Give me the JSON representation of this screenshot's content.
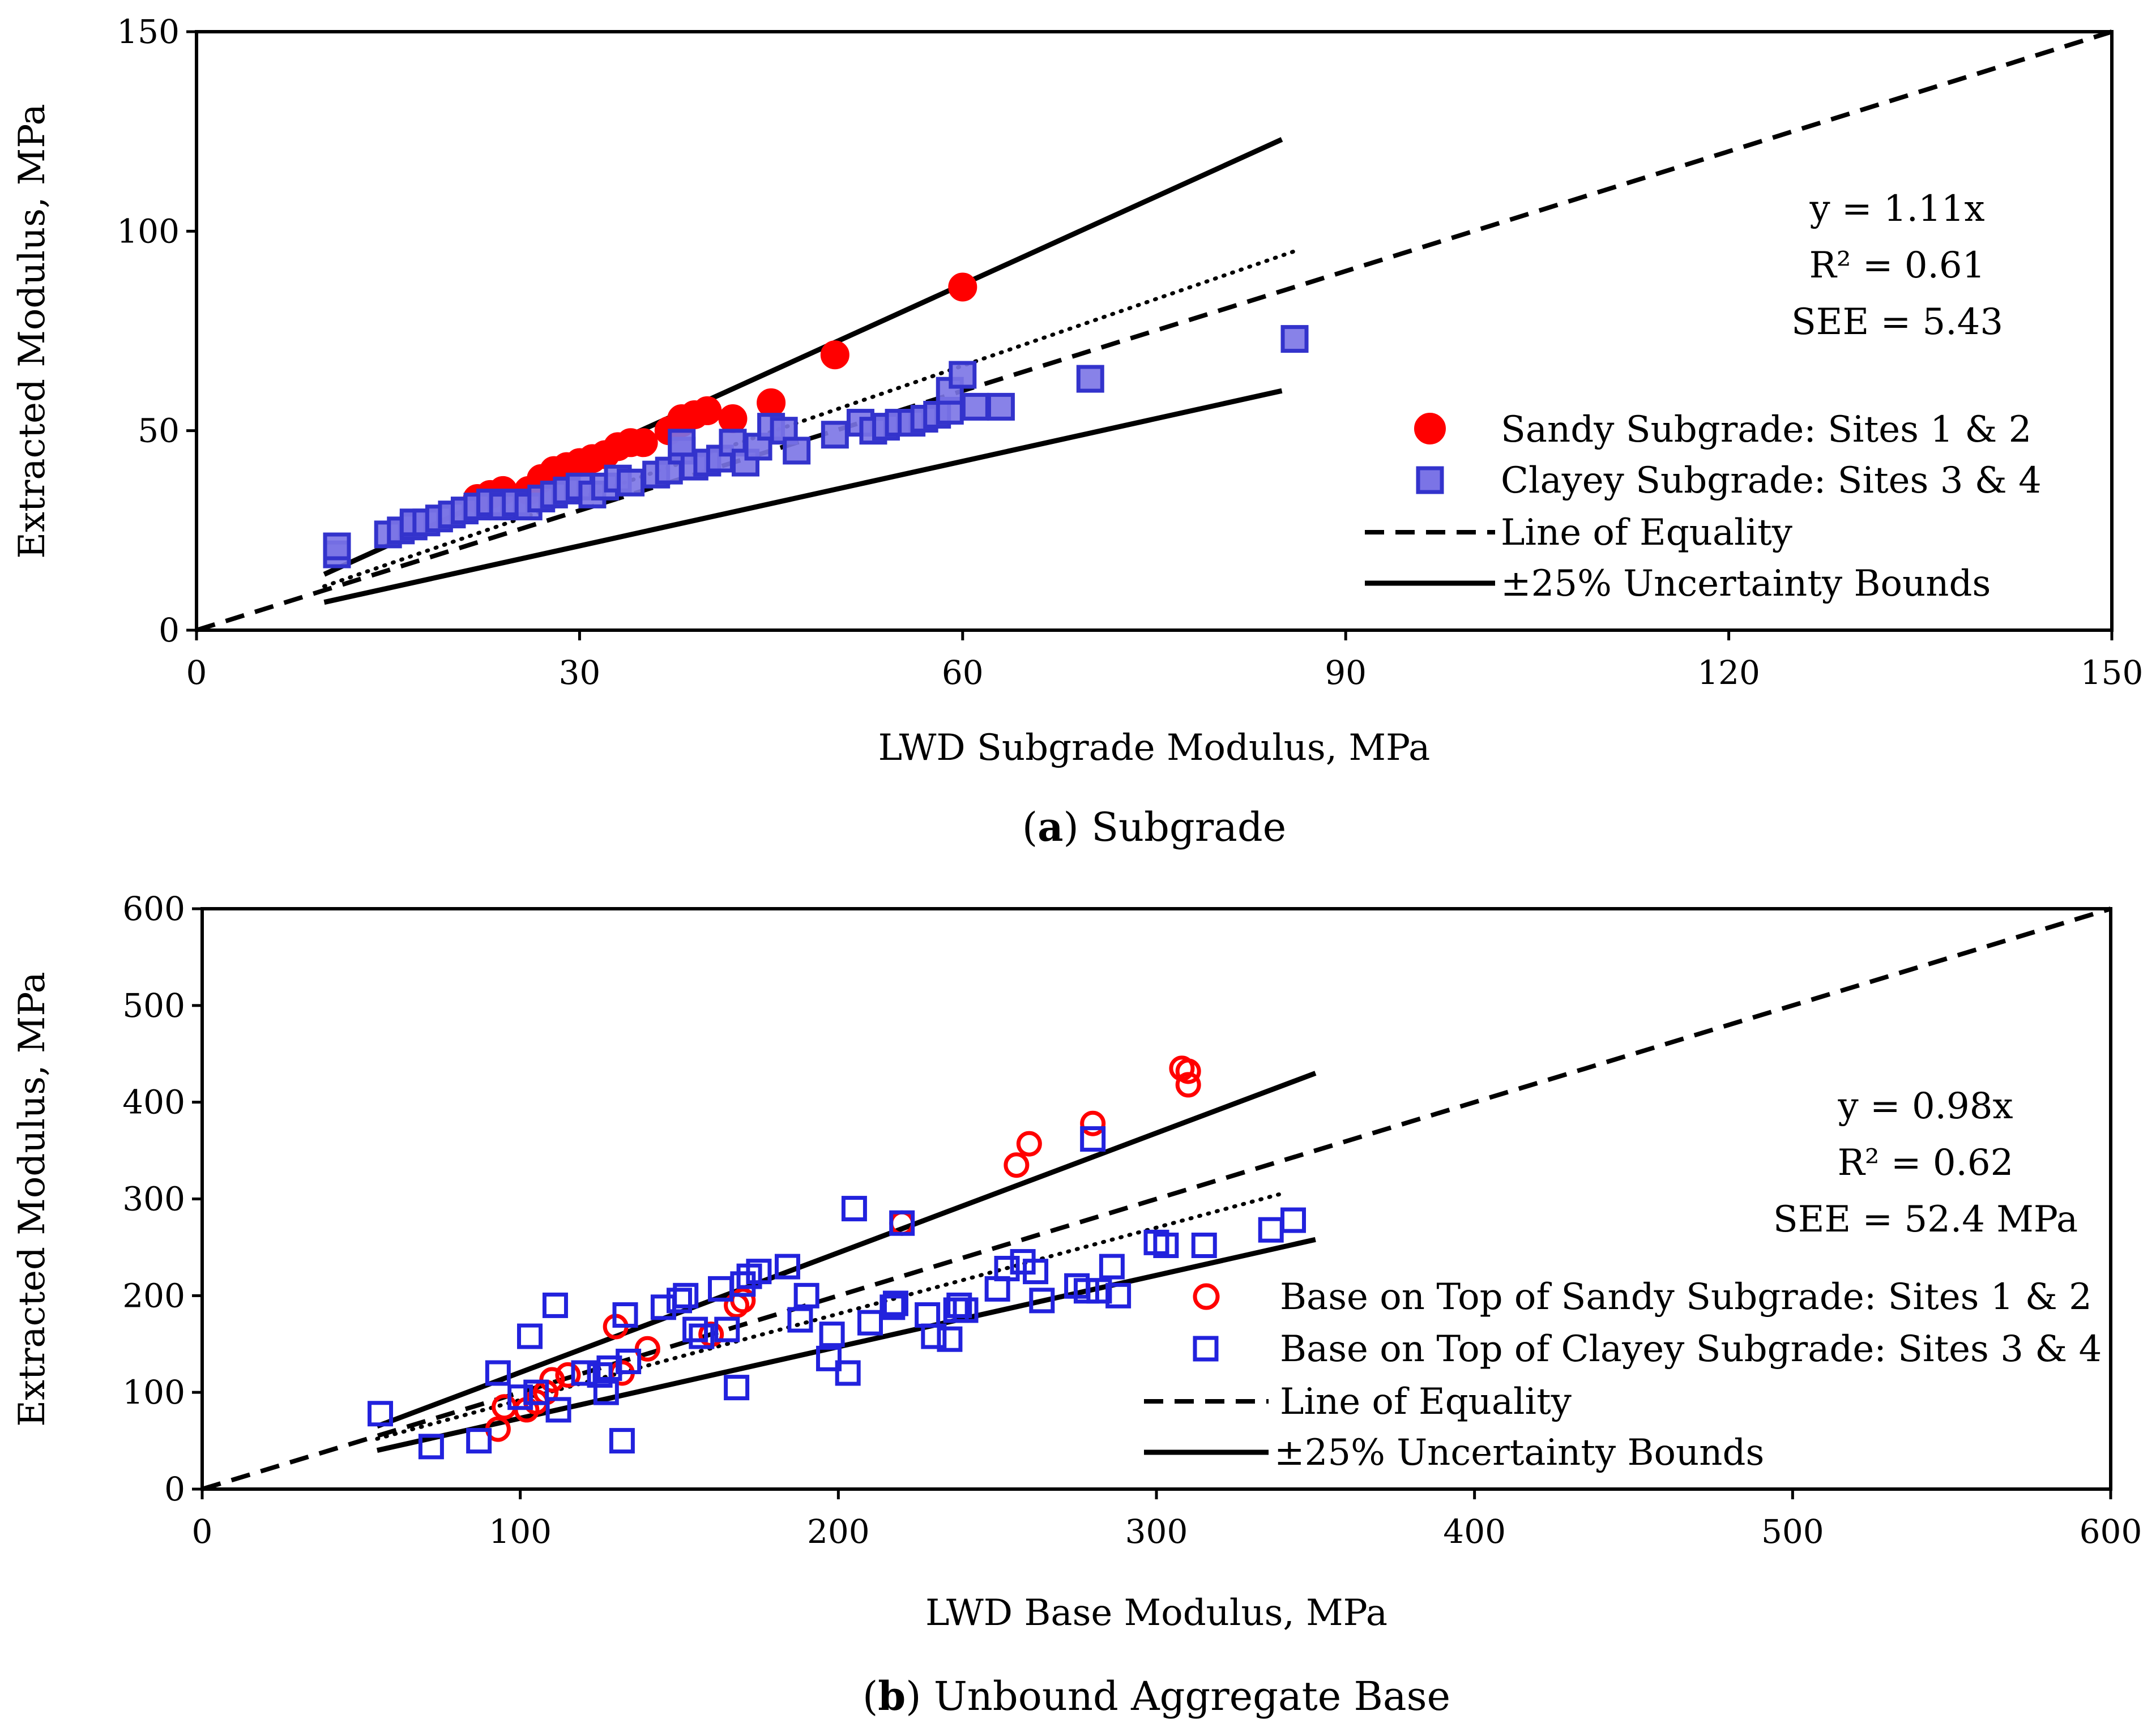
{
  "chart_data": [
    {
      "id": "a",
      "type": "scatter",
      "caption_letter": "a",
      "caption_text": "Subgrade",
      "xlabel": "LWD Subgrade Modulus, MPa",
      "ylabel": "Extracted Modulus, MPa",
      "xlim": [
        0,
        150
      ],
      "ylim": [
        0,
        150
      ],
      "xticks": [
        0,
        30,
        60,
        90,
        120,
        150
      ],
      "yticks": [
        0,
        50,
        100,
        150
      ],
      "grid": false,
      "annotations": [
        "y = 1.11x",
        "R² = 0.61",
        "SEE = 5.43"
      ],
      "legend_position": "right",
      "legend": [
        {
          "label": "Sandy Subgrade: Sites 1 & 2",
          "kind": "filled-circle",
          "color": "#ff0000"
        },
        {
          "label": "Clayey Subgrade: Sites 3 & 4",
          "kind": "filled-square",
          "color": "#3333cc"
        },
        {
          "label": "Line of Equality",
          "kind": "dashed"
        },
        {
          "label": "±25% Uncertainty Bounds",
          "kind": "solid"
        }
      ],
      "lines": [
        {
          "name": "Line of Equality",
          "style": "dashed",
          "points": [
            [
              0,
              0
            ],
            [
              150,
              150
            ]
          ]
        },
        {
          "name": "Upper Bound",
          "style": "solid",
          "points": [
            [
              10,
              14
            ],
            [
              85,
              123
            ]
          ]
        },
        {
          "name": "Lower Bound",
          "style": "solid",
          "points": [
            [
              10,
              7
            ],
            [
              85,
              60
            ]
          ]
        },
        {
          "name": "Trend",
          "style": "dotted",
          "points": [
            [
              10,
              11
            ],
            [
              86,
              95
            ]
          ]
        }
      ],
      "series": [
        {
          "name": "Sandy Subgrade: Sites 1 & 2",
          "marker": "circle",
          "filled": true,
          "color": "#ff0000",
          "points": [
            [
              22,
              33
            ],
            [
              23,
              34
            ],
            [
              24,
              35
            ],
            [
              26,
              35
            ],
            [
              27,
              38
            ],
            [
              28,
              40
            ],
            [
              29,
              41
            ],
            [
              30,
              42
            ],
            [
              31,
              43
            ],
            [
              32,
              44
            ],
            [
              33,
              46
            ],
            [
              34,
              47
            ],
            [
              35,
              47
            ],
            [
              37,
              50
            ],
            [
              38,
              52
            ],
            [
              38,
              53
            ],
            [
              39,
              54
            ],
            [
              40,
              55
            ],
            [
              42,
              53
            ],
            [
              45,
              57
            ],
            [
              50,
              69
            ],
            [
              60,
              86
            ]
          ]
        },
        {
          "name": "Clayey Subgrade: Sites 3 & 4",
          "marker": "square",
          "filled": true,
          "color": "#3333cc",
          "points": [
            [
              11,
              19
            ],
            [
              11,
              21
            ],
            [
              15,
              24
            ],
            [
              16,
              25
            ],
            [
              17,
              26
            ],
            [
              17,
              27
            ],
            [
              18,
              27
            ],
            [
              19,
              28
            ],
            [
              20,
              29
            ],
            [
              21,
              30
            ],
            [
              22,
              31
            ],
            [
              23,
              32
            ],
            [
              24,
              31
            ],
            [
              25,
              32
            ],
            [
              26,
              31
            ],
            [
              27,
              33
            ],
            [
              28,
              34
            ],
            [
              29,
              35
            ],
            [
              30,
              36
            ],
            [
              31,
              34
            ],
            [
              32,
              36
            ],
            [
              33,
              38
            ],
            [
              34,
              37
            ],
            [
              36,
              39
            ],
            [
              37,
              40
            ],
            [
              38,
              45
            ],
            [
              38,
              47
            ],
            [
              39,
              41
            ],
            [
              40,
              42
            ],
            [
              41,
              43
            ],
            [
              42,
              47
            ],
            [
              43,
              42
            ],
            [
              44,
              46
            ],
            [
              45,
              51
            ],
            [
              46,
              50
            ],
            [
              47,
              45
            ],
            [
              50,
              49
            ],
            [
              52,
              52
            ],
            [
              53,
              50
            ],
            [
              54,
              51
            ],
            [
              55,
              52
            ],
            [
              56,
              52
            ],
            [
              57,
              53
            ],
            [
              58,
              54
            ],
            [
              59,
              55
            ],
            [
              59,
              60
            ],
            [
              60,
              64
            ],
            [
              61,
              56
            ],
            [
              63,
              56
            ],
            [
              70,
              63
            ],
            [
              86,
              73
            ]
          ]
        }
      ]
    },
    {
      "id": "b",
      "type": "scatter",
      "caption_letter": "b",
      "caption_text": "Unbound Aggregate Base",
      "xlabel": "LWD Base Modulus, MPa",
      "ylabel": "Extracted Modulus, MPa",
      "xlim": [
        0,
        600
      ],
      "ylim": [
        0,
        600
      ],
      "xticks": [
        0,
        100,
        200,
        300,
        400,
        500,
        600
      ],
      "yticks": [
        0,
        100,
        200,
        300,
        400,
        500,
        600
      ],
      "grid": false,
      "annotations": [
        "y = 0.98x",
        "R² = 0.62",
        "SEE = 52.4 MPa"
      ],
      "legend_position": "right",
      "legend": [
        {
          "label": "Base on Top of Sandy Subgrade: Sites 1 & 2",
          "kind": "open-circle",
          "color": "#ff0000"
        },
        {
          "label": "Base on Top of Clayey Subgrade: Sites 3 & 4",
          "kind": "open-square",
          "color": "#2222dd"
        },
        {
          "label": "Line of Equality",
          "kind": "dashed"
        },
        {
          "label": "±25% Uncertainty Bounds",
          "kind": "solid"
        }
      ],
      "lines": [
        {
          "name": "Line of Equality",
          "style": "dashed",
          "points": [
            [
              0,
              0
            ],
            [
              600,
              600
            ]
          ]
        },
        {
          "name": "Upper Bound",
          "style": "solid",
          "points": [
            [
              55,
              65
            ],
            [
              350,
              430
            ]
          ]
        },
        {
          "name": "Lower Bound",
          "style": "solid",
          "points": [
            [
              55,
              40
            ],
            [
              350,
              258
            ]
          ]
        },
        {
          "name": "Trend",
          "style": "dotted",
          "points": [
            [
              55,
              52
            ],
            [
              340,
              306
            ]
          ]
        }
      ],
      "series": [
        {
          "name": "Base on Top of Sandy Subgrade: Sites 1 & 2",
          "marker": "circle",
          "filled": false,
          "color": "#ff0000",
          "points": [
            [
              93,
              62
            ],
            [
              95,
              85
            ],
            [
              102,
              82
            ],
            [
              105,
              90
            ],
            [
              108,
              100
            ],
            [
              110,
              113
            ],
            [
              115,
              118
            ],
            [
              130,
              168
            ],
            [
              132,
              120
            ],
            [
              140,
              145
            ],
            [
              160,
              160
            ],
            [
              168,
              190
            ],
            [
              170,
              195
            ],
            [
              220,
              275
            ],
            [
              256,
              335
            ],
            [
              260,
              357
            ],
            [
              280,
              378
            ],
            [
              308,
              435
            ],
            [
              310,
              418
            ],
            [
              310,
              432
            ]
          ]
        },
        {
          "name": "Base on Top of Clayey Subgrade: Sites 3 & 4",
          "marker": "square",
          "filled": false,
          "color": "#2222dd",
          "points": [
            [
              56,
              78
            ],
            [
              72,
              44
            ],
            [
              87,
              50
            ],
            [
              93,
              120
            ],
            [
              100,
              95
            ],
            [
              103,
              158
            ],
            [
              105,
              100
            ],
            [
              111,
              190
            ],
            [
              112,
              82
            ],
            [
              120,
              120
            ],
            [
              125,
              118
            ],
            [
              127,
              100
            ],
            [
              128,
              125
            ],
            [
              132,
              50
            ],
            [
              133,
              180
            ],
            [
              134,
              132
            ],
            [
              145,
              188
            ],
            [
              150,
              195
            ],
            [
              152,
              200
            ],
            [
              155,
              165
            ],
            [
              157,
              158
            ],
            [
              163,
              207
            ],
            [
              165,
              165
            ],
            [
              168,
              105
            ],
            [
              170,
              212
            ],
            [
              172,
              220
            ],
            [
              175,
              225
            ],
            [
              184,
              230
            ],
            [
              188,
              175
            ],
            [
              190,
              200
            ],
            [
              197,
              135
            ],
            [
              198,
              160
            ],
            [
              203,
              120
            ],
            [
              205,
              290
            ],
            [
              210,
              172
            ],
            [
              217,
              188
            ],
            [
              218,
              192
            ],
            [
              220,
              275
            ],
            [
              228,
              180
            ],
            [
              230,
              158
            ],
            [
              235,
              155
            ],
            [
              237,
              185
            ],
            [
              238,
              190
            ],
            [
              240,
              185
            ],
            [
              250,
              207
            ],
            [
              253,
              228
            ],
            [
              258,
              235
            ],
            [
              262,
              225
            ],
            [
              264,
              195
            ],
            [
              275,
              210
            ],
            [
              278,
              205
            ],
            [
              280,
              362
            ],
            [
              282,
              205
            ],
            [
              286,
              230
            ],
            [
              288,
              200
            ],
            [
              300,
              255
            ],
            [
              303,
              252
            ],
            [
              315,
              252
            ],
            [
              336,
              268
            ],
            [
              343,
              278
            ]
          ]
        }
      ]
    }
  ]
}
